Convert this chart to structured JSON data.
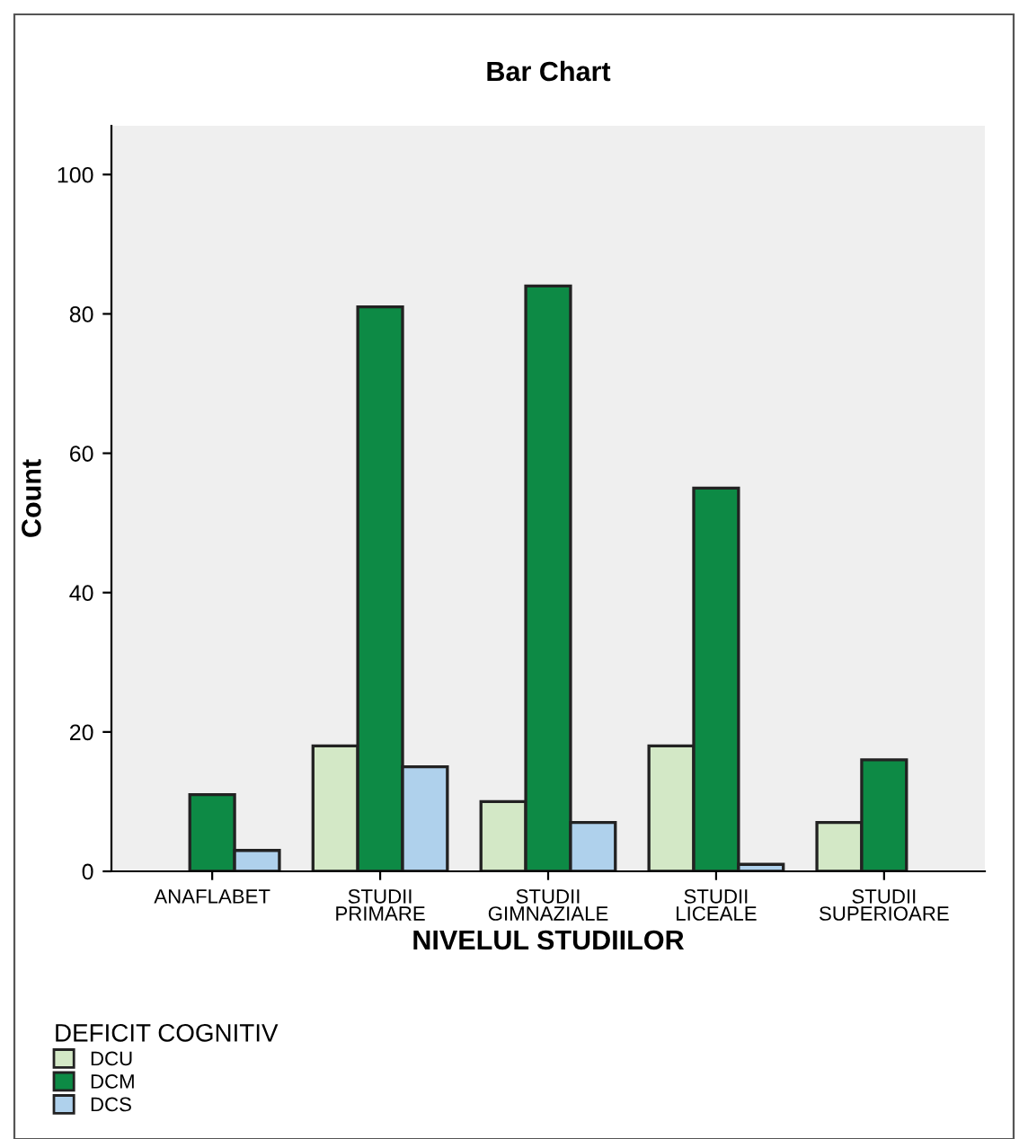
{
  "chart_data": {
    "type": "bar",
    "title": "Bar Chart",
    "xlabel": "NIVELUL STUDIILOR",
    "ylabel": "Count",
    "legend_title": "DEFICIT COGNITIV",
    "categories": [
      "ANAFLABET",
      "STUDII\nPRIMARE",
      "STUDII\nGIMNAZIALE",
      "STUDII\nLICEALE",
      "STUDII\nSUPERIOARE"
    ],
    "series": [
      {
        "name": "DCU",
        "color": "#d3e8c6",
        "values": [
          null,
          18,
          10,
          18,
          7
        ]
      },
      {
        "name": "DCM",
        "color": "#0d8a45",
        "values": [
          11,
          81,
          84,
          55,
          16
        ]
      },
      {
        "name": "DCS",
        "color": "#afd1ec",
        "values": [
          3,
          15,
          7,
          1,
          null
        ]
      }
    ],
    "ylim": [
      0,
      107
    ],
    "yticks": [
      0,
      20,
      40,
      60,
      80,
      100
    ],
    "grid": false,
    "legend": "bottom left"
  }
}
